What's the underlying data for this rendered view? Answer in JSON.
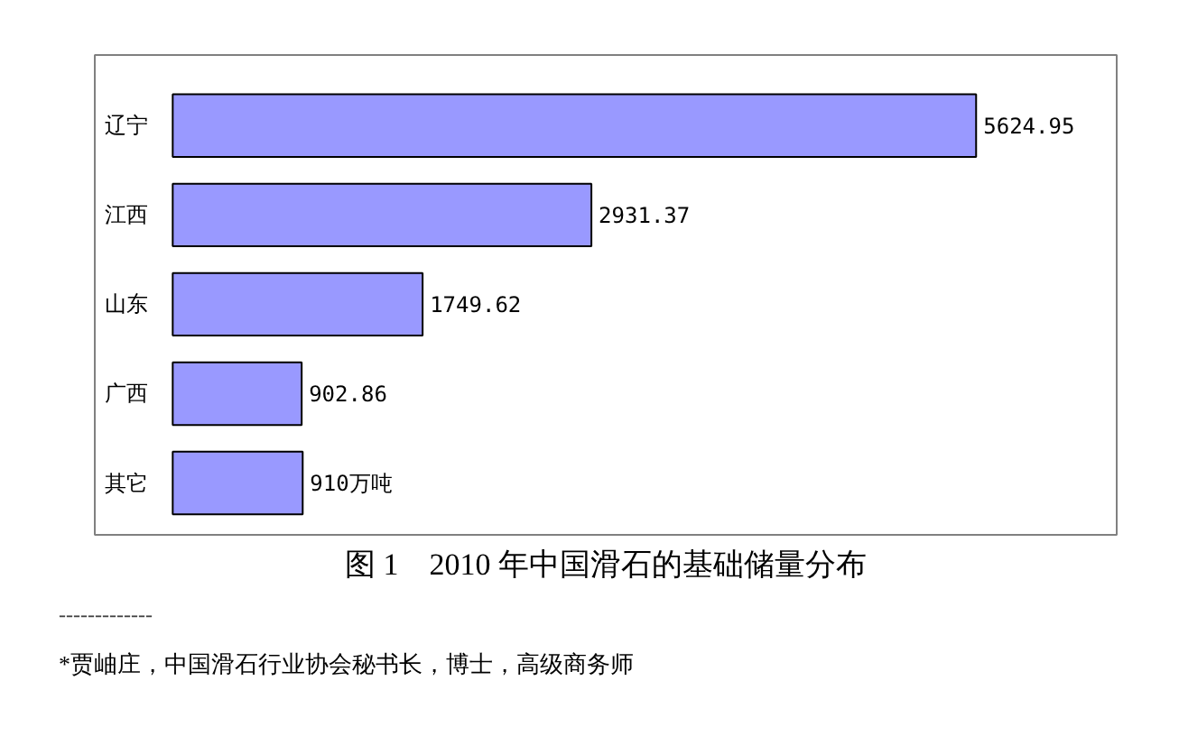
{
  "chart_data": {
    "type": "bar",
    "orientation": "horizontal",
    "title": "图 1　2010 年中国滑石的基础储量分布",
    "categories": [
      "辽宁",
      "江西",
      "山东",
      "广西",
      "其它"
    ],
    "values": [
      5624.95,
      2931.37,
      1749.62,
      902.86,
      910
    ],
    "value_labels": [
      "5624.95",
      "2931.37",
      "1749.62",
      "902.86",
      "910万吨"
    ],
    "color": "#9999ff",
    "grid": false,
    "annotations": [
      "-------------",
      "*贾岫庄，中国滑石行业协会秘书长，博士，高级商务师"
    ]
  }
}
